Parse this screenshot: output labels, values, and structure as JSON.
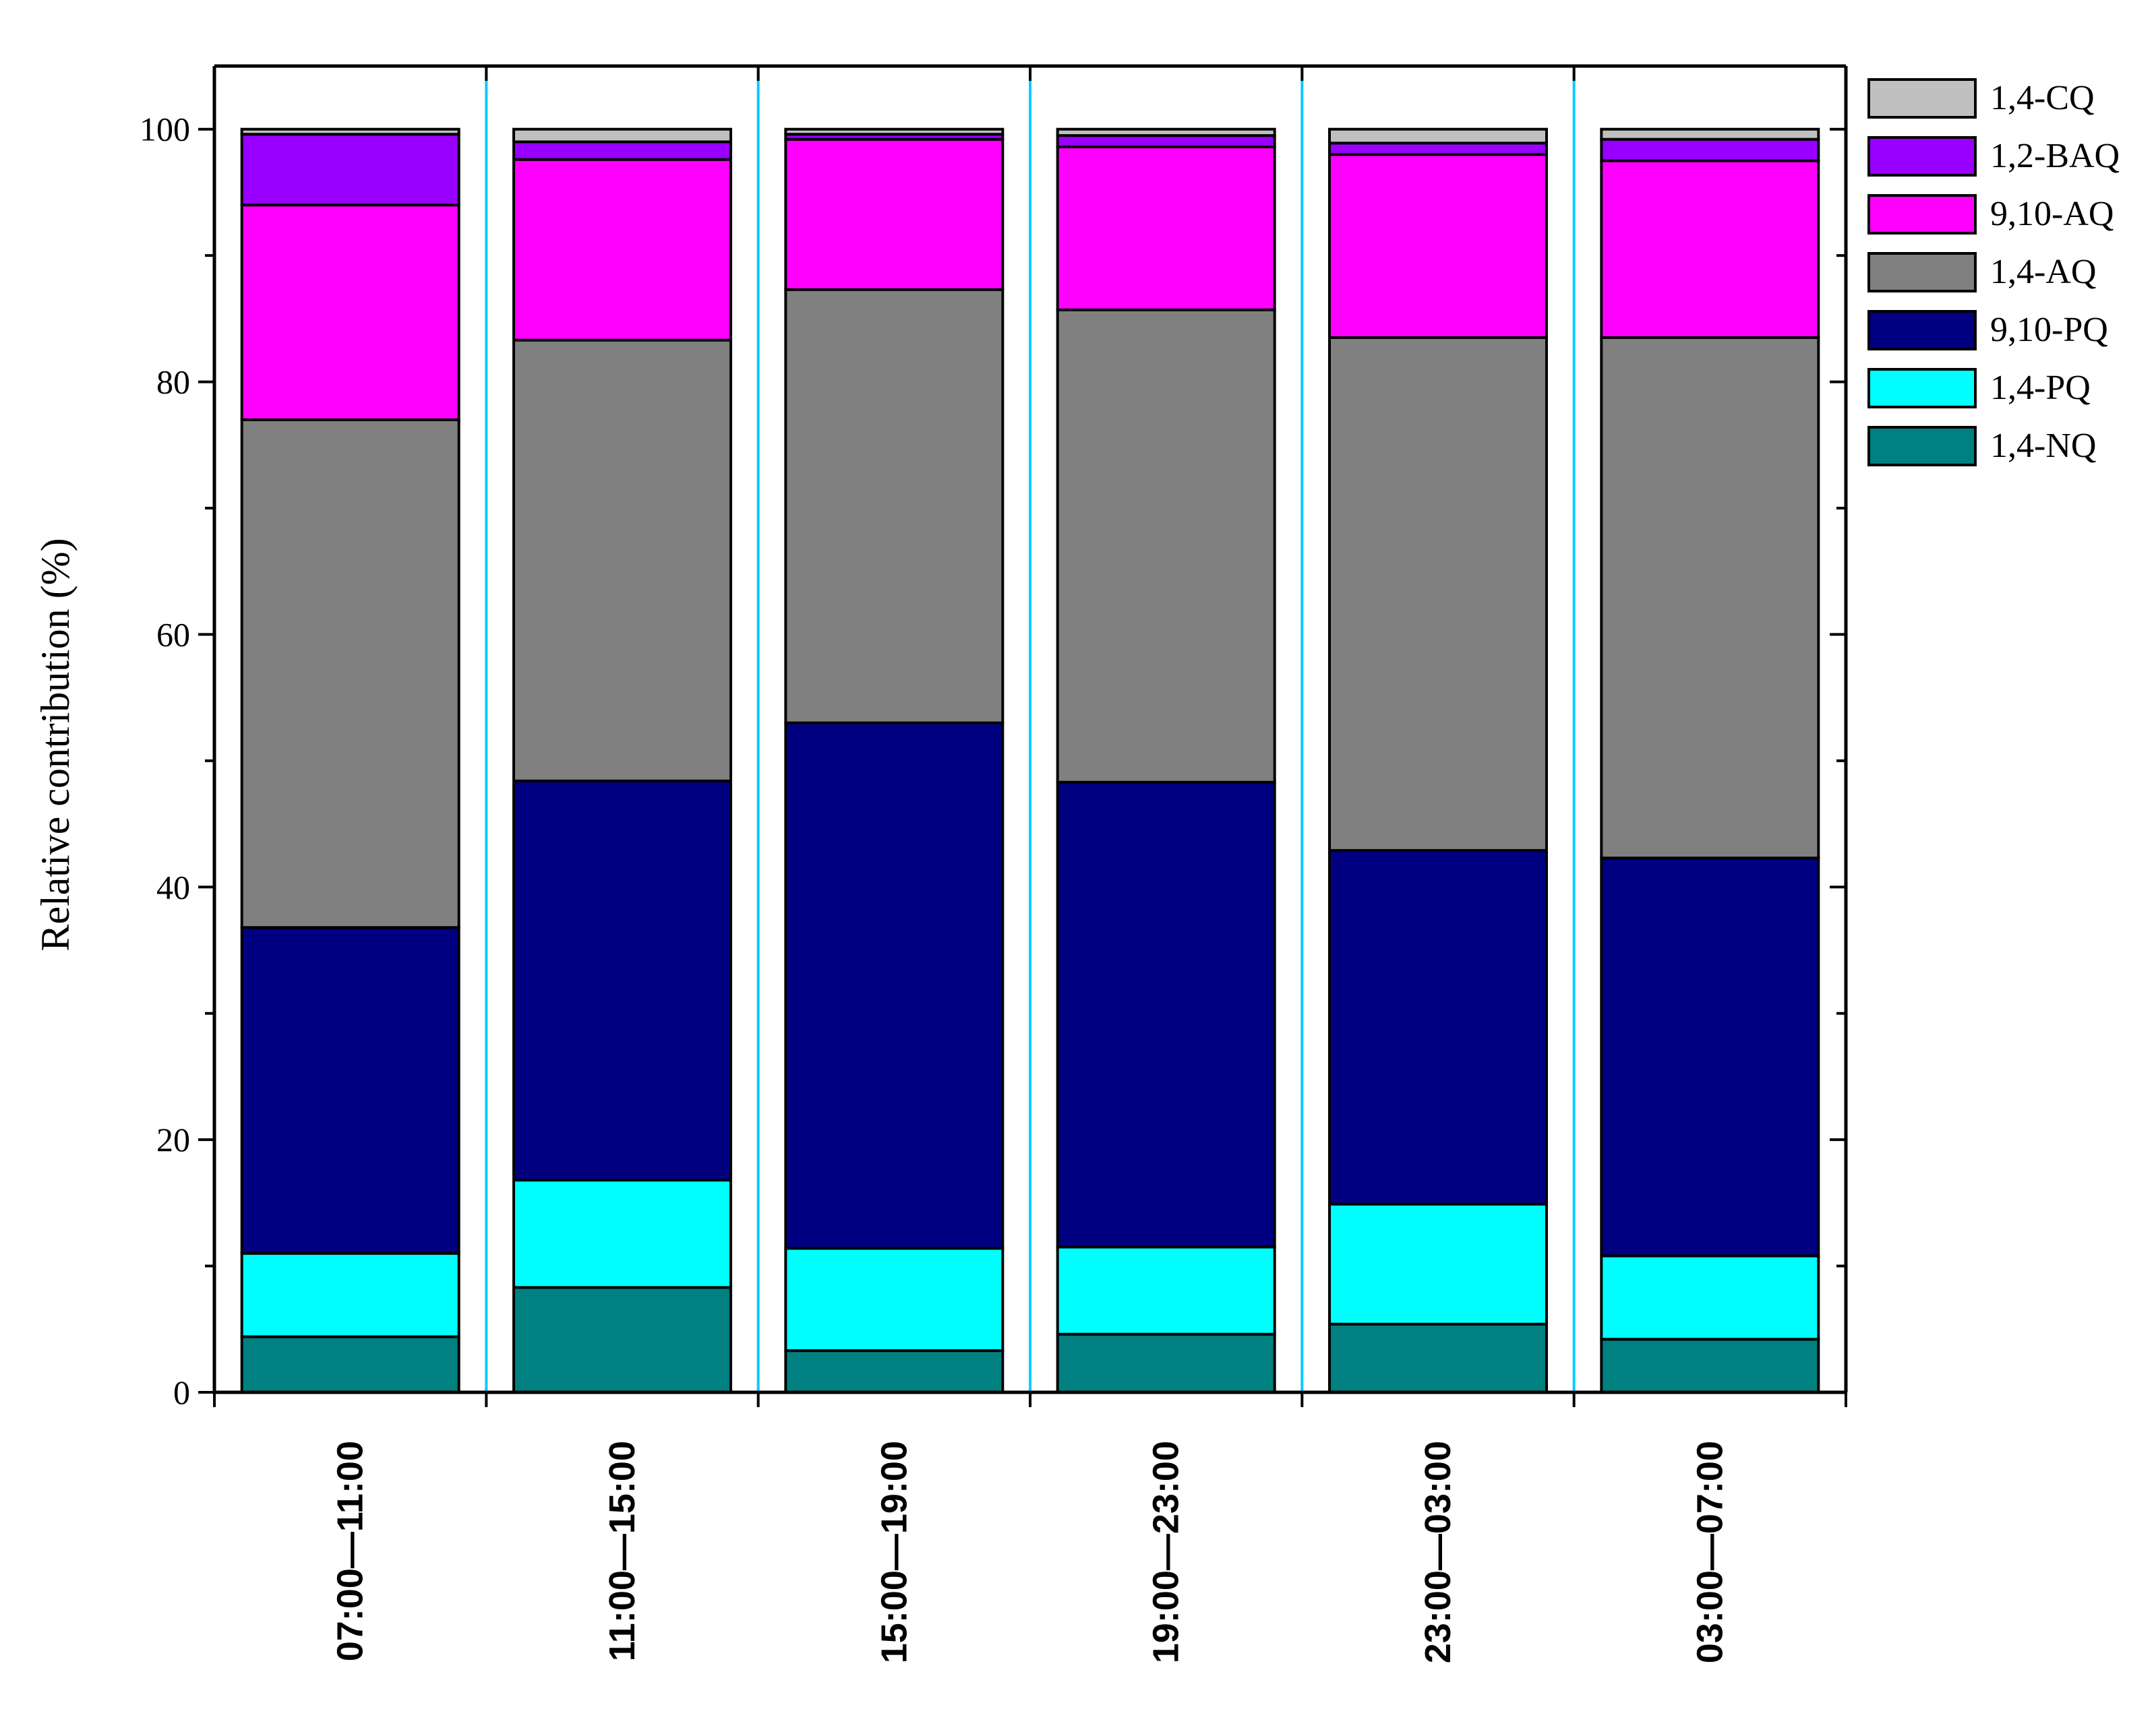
{
  "chart_data": {
    "type": "bar",
    "stacked": true,
    "title": "",
    "xlabel": "",
    "ylabel": "Relative contribution (%)",
    "ylim": [
      0,
      105
    ],
    "yticks": [
      0,
      20,
      40,
      60,
      80,
      100
    ],
    "grid": false,
    "legend_position": "top-right",
    "categories": [
      "07:00—11:00",
      "11:00—15:00",
      "15:00—19:00",
      "19:00—23:00",
      "23:00—03:00",
      "03:00—07:00"
    ],
    "series": [
      {
        "name": "1,4-NQ",
        "color": "#008080",
        "values": [
          4.4,
          8.3,
          3.3,
          4.6,
          5.4,
          4.2
        ]
      },
      {
        "name": "1,4-PQ",
        "color": "#00FFFF",
        "values": [
          6.6,
          8.5,
          8.1,
          6.9,
          9.5,
          6.6
        ]
      },
      {
        "name": "9,10-PQ",
        "color": "#000080",
        "values": [
          25.8,
          31.6,
          41.6,
          36.8,
          28.0,
          31.5
        ]
      },
      {
        "name": "1,4-AQ",
        "color": "#808080",
        "values": [
          40.2,
          34.9,
          34.3,
          37.4,
          40.6,
          41.2
        ]
      },
      {
        "name": "9,10-AQ",
        "color": "#FF00FF",
        "values": [
          17.0,
          14.3,
          11.9,
          12.9,
          14.5,
          14.0
        ]
      },
      {
        "name": "1,2-BAQ",
        "color": "#9900FF",
        "values": [
          5.6,
          1.4,
          0.4,
          0.9,
          0.9,
          1.7
        ]
      },
      {
        "name": "1,4-CQ",
        "color": "#C0C0C0",
        "values": [
          0.4,
          1.0,
          0.4,
          0.5,
          1.1,
          0.8
        ]
      }
    ],
    "separator_color": "#00CCFF"
  }
}
